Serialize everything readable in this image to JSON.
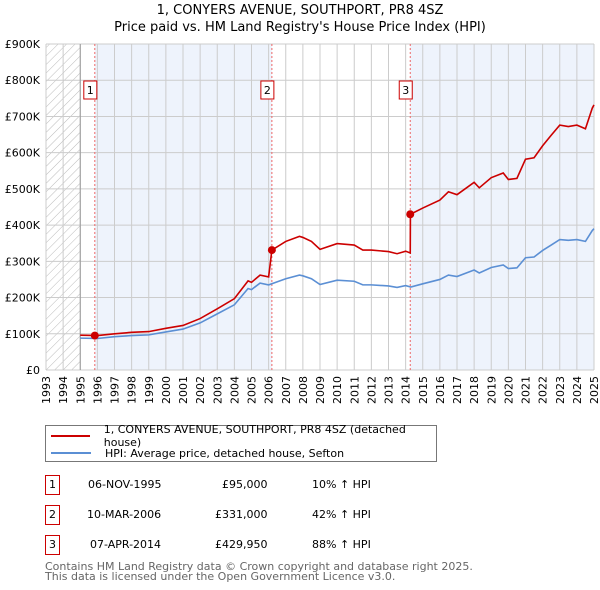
{
  "chart_data": {
    "type": "line",
    "title": "1, CONYERS AVENUE, SOUTHPORT, PR8 4SZ",
    "subtitle": "Price paid vs. HM Land Registry's House Price Index (HPI)",
    "xlim": [
      1993,
      2025
    ],
    "ylim": [
      0,
      900000
    ],
    "x_ticks": [
      "1993",
      "1994",
      "1995",
      "1996",
      "1997",
      "1998",
      "1999",
      "2000",
      "2001",
      "2002",
      "2003",
      "2004",
      "2005",
      "2006",
      "2007",
      "2008",
      "2009",
      "2010",
      "2011",
      "2012",
      "2013",
      "2014",
      "2015",
      "2016",
      "2017",
      "2018",
      "2019",
      "2020",
      "2021",
      "2022",
      "2023",
      "2024",
      "2025"
    ],
    "y_ticks": [
      {
        "v": 0,
        "label": "£0"
      },
      {
        "v": 100000,
        "label": "£100K"
      },
      {
        "v": 200000,
        "label": "£200K"
      },
      {
        "v": 300000,
        "label": "£300K"
      },
      {
        "v": 400000,
        "label": "£400K"
      },
      {
        "v": 500000,
        "label": "£500K"
      },
      {
        "v": 600000,
        "label": "£600K"
      },
      {
        "v": 700000,
        "label": "£700K"
      },
      {
        "v": 800000,
        "label": "£800K"
      },
      {
        "v": 900000,
        "label": "£900K"
      }
    ],
    "grid": true,
    "legend_placement": "below",
    "series": [
      {
        "name": "1, CONYERS AVENUE, SOUTHPORT, PR8 4SZ (detached house)",
        "color": "#cc0000",
        "x": [
          1995,
          1996,
          1997,
          1998,
          1999,
          2000,
          2001,
          2002,
          2003,
          2004,
          2004.8,
          2005,
          2005.5,
          2006,
          2006.19,
          2007,
          2007.8,
          2008,
          2008.5,
          2009,
          2010,
          2011,
          2011.5,
          2012,
          2013,
          2013.5,
          2014,
          2014.27,
          2014.28,
          2015,
          2016,
          2016.5,
          2017,
          2018,
          2018.3,
          2019,
          2019.7,
          2020,
          2020.5,
          2021,
          2021.5,
          2022,
          2022.5,
          2023,
          2023.5,
          2024,
          2024.5,
          2024.9,
          2025
        ],
        "y": [
          96000,
          95000,
          100000,
          104000,
          106000,
          115000,
          123000,
          142000,
          169000,
          197000,
          246000,
          242000,
          262000,
          257000,
          331000,
          355000,
          369000,
          366000,
          355000,
          333000,
          349000,
          345000,
          331000,
          331000,
          327000,
          321000,
          328000,
          323000,
          429950,
          447000,
          469000,
          492000,
          484000,
          518000,
          503000,
          531000,
          544000,
          526000,
          529000,
          582000,
          586000,
          619000,
          648000,
          676000,
          672000,
          676000,
          666000,
          723000,
          732000
        ]
      },
      {
        "name": "HPI: Average price, detached house, Sefton",
        "color": "#5b8fd4",
        "x": [
          1995,
          1996,
          1997,
          1998,
          1999,
          2000,
          2001,
          2002,
          2003,
          2004,
          2004.8,
          2005,
          2005.5,
          2006,
          2007,
          2007.8,
          2008,
          2008.5,
          2009,
          2010,
          2011,
          2011.5,
          2012,
          2013,
          2013.5,
          2014,
          2014.3,
          2015,
          2016,
          2016.5,
          2017,
          2018,
          2018.3,
          2019,
          2019.7,
          2020,
          2020.5,
          2021,
          2021.5,
          2022,
          2022.5,
          2023,
          2023.5,
          2024,
          2024.5,
          2024.9,
          2025
        ],
        "y": [
          88000,
          87000,
          92000,
          95000,
          97000,
          105000,
          113000,
          130000,
          155000,
          180000,
          225000,
          222000,
          240000,
          235000,
          252000,
          262000,
          260000,
          252000,
          236000,
          248000,
          245000,
          235000,
          235000,
          232000,
          228000,
          233000,
          229000,
          238000,
          250000,
          262000,
          258000,
          276000,
          268000,
          283000,
          290000,
          280000,
          282000,
          310000,
          312000,
          330000,
          345000,
          360000,
          358000,
          360000,
          355000,
          385000,
          390000
        ]
      }
    ],
    "sales": [
      {
        "n": "1",
        "x": 1995.85,
        "y": 95000,
        "date": "06-NOV-1995",
        "price": "£95,000",
        "hpi": "10% ↑ HPI"
      },
      {
        "n": "2",
        "x": 2006.19,
        "y": 331000,
        "date": "10-MAR-2006",
        "price": "£331,000",
        "hpi": "42% ↑ HPI"
      },
      {
        "n": "3",
        "x": 2014.27,
        "y": 429950,
        "date": "07-APR-2014",
        "price": "£429,950",
        "hpi": "88% ↑ HPI"
      }
    ]
  },
  "footer": {
    "line1": "Contains HM Land Registry data © Crown copyright and database right 2025.",
    "line2": "This data is licensed under the Open Government Licence v3.0."
  }
}
